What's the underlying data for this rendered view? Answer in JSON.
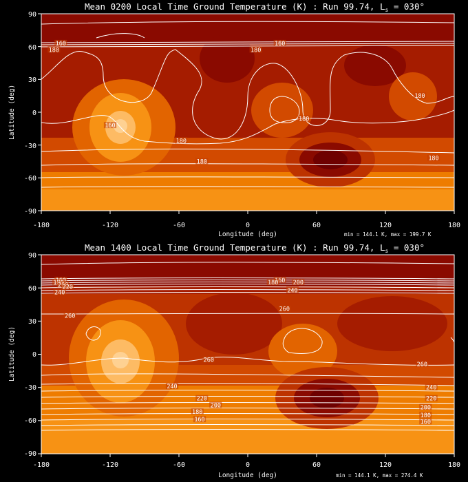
{
  "colors": {
    "background": "#000000",
    "text": "#ffffff",
    "contour": "#ffffff",
    "scale": [
      "#6e0000",
      "#8a0a00",
      "#a51c00",
      "#bd3300",
      "#d24a00",
      "#e26400",
      "#ee7c00",
      "#f79214",
      "#fba63a",
      "#fdbb64",
      "#fed192",
      "#ffe6c4"
    ]
  },
  "chart_data": [
    {
      "type": "heatmap",
      "title": "Mean 0200 Local Time Ground Temperature (K) : Run 99.74, L",
      "title_sub": "s",
      "title_tail": " = 030°",
      "xlabel": "Longitude (deg)",
      "ylabel": "Latitude (deg)",
      "xlim": [
        -180,
        180
      ],
      "ylim": [
        -90,
        90
      ],
      "xticks": [
        "-180",
        "-120",
        "-60",
        "0",
        "60",
        "120",
        "180"
      ],
      "yticks": [
        "90",
        "60",
        "30",
        "0",
        "-30",
        "-60",
        "-90"
      ],
      "stats": "min =  144.1 K, max =  199.7 K",
      "value_range": [
        144.1,
        199.7
      ],
      "contour_labels": [
        {
          "text": "160",
          "lon": -163,
          "lat": 63
        },
        {
          "text": "180",
          "lon": -169,
          "lat": 57
        },
        {
          "text": "160",
          "lon": 28,
          "lat": 63
        },
        {
          "text": "180",
          "lon": 7,
          "lat": 57
        },
        {
          "text": "180",
          "lon": 150,
          "lat": 15
        },
        {
          "text": "180",
          "lon": 49,
          "lat": -6
        },
        {
          "text": "160",
          "lon": -120,
          "lat": -12
        },
        {
          "text": "180",
          "lon": -58,
          "lat": -26
        },
        {
          "text": "180",
          "lon": -40,
          "lat": -45
        },
        {
          "text": "180",
          "lon": 162,
          "lat": -42
        }
      ],
      "features": [
        {
          "lon": -110,
          "lat": -15,
          "value": 199.7
        },
        {
          "lon": 72,
          "lat": -42,
          "value": 152
        },
        {
          "lon": 0,
          "lat": 82,
          "value": 150
        },
        {
          "lon": -20,
          "lat": 40,
          "value": 165
        },
        {
          "lon": 110,
          "lat": 42,
          "value": 166
        },
        {
          "lon": -165,
          "lat": 30,
          "value": 170
        },
        {
          "lon": 30,
          "lat": 10,
          "value": 185
        },
        {
          "lon": 145,
          "lat": 22,
          "value": 187
        },
        {
          "lon": 170,
          "lat": 0,
          "value": 180
        },
        {
          "lon": -75,
          "lat": 10,
          "value": 172
        },
        {
          "lon": -50,
          "lat": -35,
          "value": 176
        }
      ]
    },
    {
      "type": "heatmap",
      "title": "Mean 1400 Local Time Ground Temperature (K) : Run 99.74, L",
      "title_sub": "s",
      "title_tail": " = 030°",
      "xlabel": "Longitude (deg)",
      "ylabel": "Latitude (deg)",
      "xlim": [
        -180,
        180
      ],
      "ylim": [
        -90,
        90
      ],
      "xticks": [
        "-180",
        "-120",
        "-60",
        "0",
        "60",
        "120",
        "180"
      ],
      "yticks": [
        "90",
        "60",
        "30",
        "0",
        "-30",
        "-60",
        "-90"
      ],
      "stats": "min =  144.1 K, max =  274.4 K",
      "value_range": [
        144.1,
        274.4
      ],
      "contour_labels": [
        {
          "text": "160",
          "lon": -163,
          "lat": 67
        },
        {
          "text": "180",
          "lon": -165,
          "lat": 65
        },
        {
          "text": "200",
          "lon": -161,
          "lat": 63
        },
        {
          "text": "220",
          "lon": -157,
          "lat": 61
        },
        {
          "text": "240",
          "lon": -164,
          "lat": 56
        },
        {
          "text": "160",
          "lon": 28,
          "lat": 67
        },
        {
          "text": "180",
          "lon": 22,
          "lat": 65
        },
        {
          "text": "200",
          "lon": 44,
          "lat": 65
        },
        {
          "text": "240",
          "lon": 39,
          "lat": 58
        },
        {
          "text": "260",
          "lon": -155,
          "lat": 35
        },
        {
          "text": "260",
          "lon": 32,
          "lat": 41
        },
        {
          "text": "260",
          "lon": -34,
          "lat": -5
        },
        {
          "text": "260",
          "lon": 152,
          "lat": -9
        },
        {
          "text": "240",
          "lon": -66,
          "lat": -29
        },
        {
          "text": "240",
          "lon": 160,
          "lat": -30
        },
        {
          "text": "220",
          "lon": -40,
          "lat": -40
        },
        {
          "text": "220",
          "lon": 160,
          "lat": -40
        },
        {
          "text": "200",
          "lon": -28,
          "lat": -46
        },
        {
          "text": "200",
          "lon": 155,
          "lat": -48
        },
        {
          "text": "180",
          "lon": -44,
          "lat": -52
        },
        {
          "text": "180",
          "lon": 155,
          "lat": -55
        },
        {
          "text": "160",
          "lon": -42,
          "lat": -59
        },
        {
          "text": "160",
          "lon": 155,
          "lat": -61
        }
      ],
      "features": [
        {
          "lon": -110,
          "lat": -5,
          "value": 274.4
        },
        {
          "lon": 65,
          "lat": -42,
          "value": 215
        },
        {
          "lon": 0,
          "lat": 80,
          "value": 150
        },
        {
          "lon": 40,
          "lat": 30,
          "value": 255
        },
        {
          "lon": -160,
          "lat": 20,
          "value": 252
        },
        {
          "lon": 140,
          "lat": 25,
          "value": 252
        },
        {
          "lon": 145,
          "lat": -5,
          "value": 263
        }
      ]
    }
  ]
}
